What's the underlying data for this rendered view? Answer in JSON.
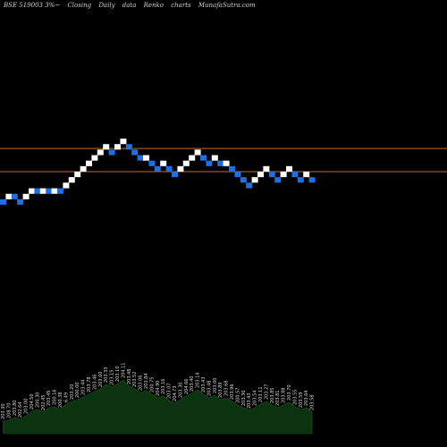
{
  "header": {
    "symbol": "BSE 519003 3%",
    "separator": "~",
    "parts": [
      "Closing",
      "Daily",
      "data",
      "Renko",
      "charts",
      "MunafaSutra.com"
    ]
  },
  "colors": {
    "background": "#000000",
    "up_brick": "#ffffff",
    "down_brick": "#1f6fe0",
    "level_line": "#b8742a",
    "volume_fill": "#0b3310",
    "volume_line": "#1a5a1a",
    "label_text": "#d8d8d8"
  },
  "chart_data": {
    "type": "renko",
    "brick_size_percent": 3,
    "horizontal_levels": [
      186.0,
      167.5
    ],
    "bricks": [
      {
        "dir": "down",
        "low": 141.1,
        "high": 145.4
      },
      {
        "dir": "up",
        "low": 145.4,
        "high": 149.8
      },
      {
        "dir": "down",
        "low": 145.4,
        "high": 149.8
      },
      {
        "dir": "down",
        "low": 141.1,
        "high": 145.4
      },
      {
        "dir": "up",
        "low": 145.4,
        "high": 149.8
      },
      {
        "dir": "up",
        "low": 149.8,
        "high": 154.2
      },
      {
        "dir": "down",
        "low": 149.8,
        "high": 154.2
      },
      {
        "dir": "up",
        "low": 149.8,
        "high": 154.2
      },
      {
        "dir": "down",
        "low": 149.8,
        "high": 154.2
      },
      {
        "dir": "up",
        "low": 149.8,
        "high": 154.2
      },
      {
        "dir": "down",
        "low": 149.8,
        "high": 154.2
      },
      {
        "dir": "up",
        "low": 154.2,
        "high": 158.7
      },
      {
        "dir": "up",
        "low": 158.7,
        "high": 163.1
      },
      {
        "dir": "up",
        "low": 163.1,
        "high": 167.5
      },
      {
        "dir": "up",
        "low": 167.5,
        "high": 171.9
      },
      {
        "dir": "up",
        "low": 171.9,
        "high": 176.3
      },
      {
        "dir": "up",
        "low": 176.3,
        "high": 180.7
      },
      {
        "dir": "up",
        "low": 180.7,
        "high": 185.1
      },
      {
        "dir": "up",
        "low": 185.1,
        "high": 189.5
      },
      {
        "dir": "down",
        "low": 180.7,
        "high": 185.1
      },
      {
        "dir": "up",
        "low": 185.1,
        "high": 189.5
      },
      {
        "dir": "up",
        "low": 189.5,
        "high": 193.9
      },
      {
        "dir": "down",
        "low": 185.1,
        "high": 189.5
      },
      {
        "dir": "down",
        "low": 180.7,
        "high": 185.1
      },
      {
        "dir": "down",
        "low": 176.3,
        "high": 180.7
      },
      {
        "dir": "up",
        "low": 176.3,
        "high": 180.7
      },
      {
        "dir": "down",
        "low": 171.9,
        "high": 176.3
      },
      {
        "dir": "down",
        "low": 167.5,
        "high": 171.9
      },
      {
        "dir": "up",
        "low": 171.9,
        "high": 176.3
      },
      {
        "dir": "down",
        "low": 167.5,
        "high": 171.9
      },
      {
        "dir": "down",
        "low": 163.1,
        "high": 167.5
      },
      {
        "dir": "up",
        "low": 167.5,
        "high": 171.9
      },
      {
        "dir": "up",
        "low": 171.9,
        "high": 176.3
      },
      {
        "dir": "up",
        "low": 176.3,
        "high": 180.7
      },
      {
        "dir": "up",
        "low": 180.7,
        "high": 185.1
      },
      {
        "dir": "down",
        "low": 176.3,
        "high": 180.7
      },
      {
        "dir": "down",
        "low": 171.9,
        "high": 176.3
      },
      {
        "dir": "up",
        "low": 176.3,
        "high": 180.7
      },
      {
        "dir": "down",
        "low": 171.9,
        "high": 176.3
      },
      {
        "dir": "up",
        "low": 171.9,
        "high": 176.3
      },
      {
        "dir": "down",
        "low": 167.5,
        "high": 171.9
      },
      {
        "dir": "down",
        "low": 163.1,
        "high": 167.5
      },
      {
        "dir": "down",
        "low": 158.7,
        "high": 163.1
      },
      {
        "dir": "down",
        "low": 154.2,
        "high": 158.7
      },
      {
        "dir": "up",
        "low": 158.7,
        "high": 163.1
      },
      {
        "dir": "up",
        "low": 163.1,
        "high": 167.5
      },
      {
        "dir": "up",
        "low": 167.5,
        "high": 171.9
      },
      {
        "dir": "down",
        "low": 163.1,
        "high": 167.5
      },
      {
        "dir": "down",
        "low": 158.7,
        "high": 163.1
      },
      {
        "dir": "up",
        "low": 163.1,
        "high": 167.5
      },
      {
        "dir": "up",
        "low": 167.5,
        "high": 171.9
      },
      {
        "dir": "down",
        "low": 163.1,
        "high": 167.5
      },
      {
        "dir": "down",
        "low": 158.7,
        "high": 163.1
      },
      {
        "dir": "up",
        "low": 163.1,
        "high": 167.5
      },
      {
        "dir": "down",
        "low": 158.7,
        "high": 163.1
      }
    ],
    "volume_values": [
      14,
      15,
      18,
      16,
      20,
      25,
      27,
      24,
      29,
      30,
      27,
      33,
      36,
      38,
      41,
      44,
      47,
      50,
      55,
      52,
      56,
      60,
      53,
      50,
      46,
      48,
      44,
      40,
      42,
      37,
      34,
      38,
      42,
      45,
      49,
      44,
      40,
      43,
      38,
      40,
      36,
      32,
      29,
      26,
      29,
      33,
      36,
      32,
      29,
      32,
      35,
      30,
      27,
      29,
      24
    ],
    "volume_labels": [
      "203.30",
      "208.70",
      "203.80",
      "202.64",
      "203.00",
      "204.50",
      "200.30",
      "202.45",
      "203.45",
      "200.16",
      "200.38",
      "6.49",
      "203.20",
      "200.00",
      "203.44",
      "203.78",
      "203.46",
      "203.60",
      "203.33",
      "203.15",
      "203.10",
      "204.11",
      "203.48",
      "203.52",
      "203.06",
      "203.84",
      "200.75",
      "204.90",
      "203.16",
      "203.07",
      "204.73",
      "203.30",
      "204.66",
      "203.40",
      "203.14",
      "203.43",
      "203.48",
      "203.00",
      "203.89",
      "203.68",
      "203.96",
      "200.57",
      "203.30",
      "203.43",
      "203.54",
      "203.11",
      "203.27",
      "203.85",
      "203.81",
      "203.88",
      "203.70",
      "203.55",
      "203.59",
      "203.64",
      "203.58"
    ]
  }
}
